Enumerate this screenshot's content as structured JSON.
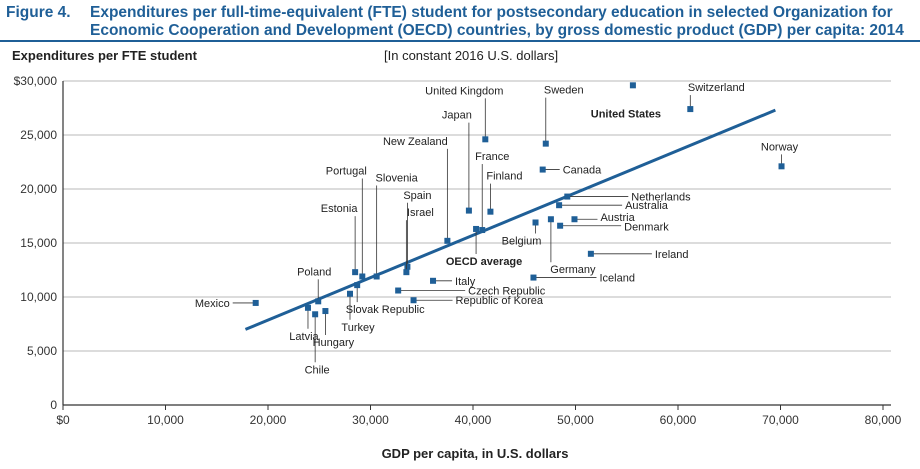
{
  "figure": {
    "number_label": "Figure 4.",
    "title_line1": "Expenditures per full-time-equivalent (FTE) student for postsecondary education in selected Organization for",
    "title_line2": "Economic Cooperation and Development (OECD) countries, by gross domestic product (GDP) per capita: 2014",
    "subtitle": "[In constant 2016 U.S. dollars]",
    "accent_color": "#1f5f97",
    "marker_color": "#1f5f97"
  },
  "chart_data": {
    "type": "scatter",
    "title": "Expenditures per full-time-equivalent (FTE) student for postsecondary education in selected Organization for Economic Cooperation and Development (OECD) countries, by gross domestic product (GDP) per capita: 2014",
    "subtitle": "[In constant 2016 U.S. dollars]",
    "xlabel": "GDP per capita, in U.S. dollars",
    "ylabel": "Expenditures per FTE student",
    "xlim": [
      0,
      80000
    ],
    "ylim": [
      0,
      30000
    ],
    "x_ticks": [
      0,
      10000,
      20000,
      30000,
      40000,
      50000,
      60000,
      70000,
      80000
    ],
    "x_tick_labels": [
      "$0",
      "10,000",
      "20,000",
      "30,000",
      "40,000",
      "50,000",
      "60,000",
      "70,000",
      "80,000"
    ],
    "y_ticks": [
      0,
      5000,
      10000,
      15000,
      20000,
      25000,
      30000
    ],
    "y_tick_labels": [
      "0",
      "5,000",
      "10,000",
      "15,000",
      "20,000",
      "25,000",
      "$30,000"
    ],
    "grid": "horizontal",
    "trendline": {
      "x": [
        17800,
        69500
      ],
      "y": [
        7000,
        27300
      ]
    },
    "points": [
      {
        "name": "Mexico",
        "x": 18800,
        "y": 9450
      },
      {
        "name": "Latvia",
        "x": 23900,
        "y": 9000
      },
      {
        "name": "Chile",
        "x": 24600,
        "y": 8400
      },
      {
        "name": "Poland",
        "x": 24900,
        "y": 9600
      },
      {
        "name": "Hungary",
        "x": 25600,
        "y": 8700
      },
      {
        "name": "Turkey",
        "x": 28000,
        "y": 10300
      },
      {
        "name": "Slovak Republic",
        "x": 28700,
        "y": 11100
      },
      {
        "name": "Estonia",
        "x": 28500,
        "y": 12300
      },
      {
        "name": "Portugal",
        "x": 29200,
        "y": 11900
      },
      {
        "name": "Slovenia",
        "x": 30600,
        "y": 11900
      },
      {
        "name": "Czech Republic",
        "x": 32700,
        "y": 10600
      },
      {
        "name": "Spain",
        "x": 33600,
        "y": 12800
      },
      {
        "name": "Israel",
        "x": 33500,
        "y": 12300
      },
      {
        "name": "Republic of Korea",
        "x": 34200,
        "y": 9700
      },
      {
        "name": "Italy",
        "x": 36100,
        "y": 11500
      },
      {
        "name": "New Zealand",
        "x": 37500,
        "y": 15200
      },
      {
        "name": "Japan",
        "x": 39600,
        "y": 18000
      },
      {
        "name": "OECD average",
        "x": 40300,
        "y": 16300,
        "bold": true
      },
      {
        "name": "France",
        "x": 40900,
        "y": 16200
      },
      {
        "name": "United Kingdom",
        "x": 41200,
        "y": 24600
      },
      {
        "name": "Finland",
        "x": 41700,
        "y": 17900
      },
      {
        "name": "Iceland",
        "x": 45900,
        "y": 11800
      },
      {
        "name": "Belgium",
        "x": 46100,
        "y": 16900
      },
      {
        "name": "Canada",
        "x": 46800,
        "y": 21800
      },
      {
        "name": "Sweden",
        "x": 47100,
        "y": 24200
      },
      {
        "name": "Germany",
        "x": 47600,
        "y": 17200
      },
      {
        "name": "Australia",
        "x": 48400,
        "y": 18500
      },
      {
        "name": "Denmark",
        "x": 48500,
        "y": 16600
      },
      {
        "name": "Netherlands",
        "x": 49200,
        "y": 19300
      },
      {
        "name": "Austria",
        "x": 49900,
        "y": 17200
      },
      {
        "name": "Ireland",
        "x": 51500,
        "y": 14000
      },
      {
        "name": "United States",
        "x": 55600,
        "y": 29600,
        "bold": true
      },
      {
        "name": "Switzerland",
        "x": 61200,
        "y": 27400
      },
      {
        "name": "Norway",
        "x": 70100,
        "y": 22100
      }
    ]
  }
}
